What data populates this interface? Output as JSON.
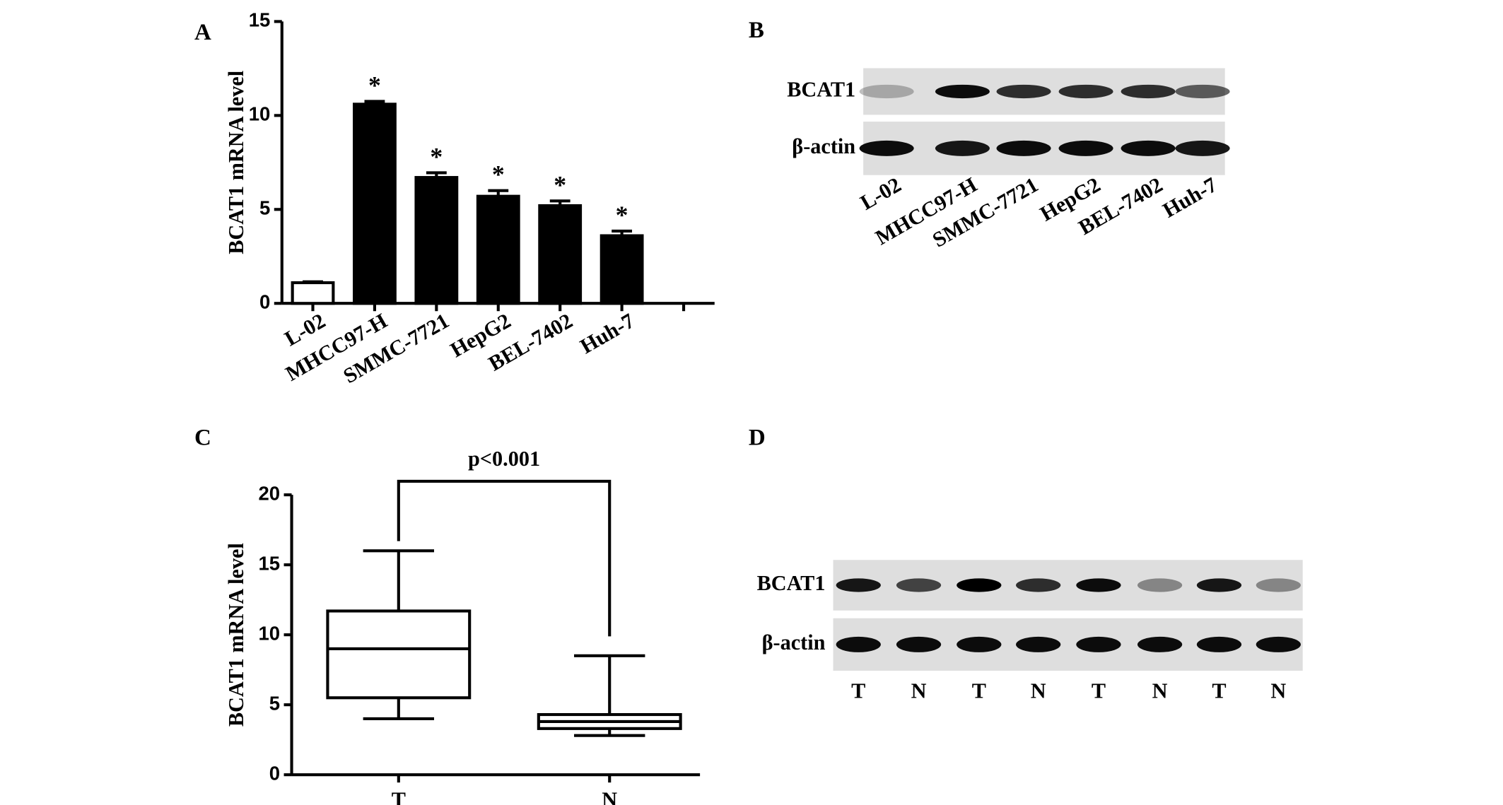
{
  "chart_data": [
    {
      "type": "bar",
      "panel": "A",
      "y_label": "BCAT1 mRNA level",
      "categories": [
        "L-02",
        "MHCC97-H",
        "SMMC-7721",
        "HepG2",
        "BEL-7402",
        "Huh-7",
        null
      ],
      "values": [
        1.1,
        10.6,
        6.7,
        5.7,
        5.2,
        3.6,
        null
      ],
      "errors": [
        0.05,
        0.15,
        0.25,
        0.3,
        0.25,
        0.25,
        null
      ],
      "colors": [
        "#ffffff",
        "#000000",
        "#000000",
        "#000000",
        "#000000",
        "#000000",
        null
      ],
      "significant": [
        false,
        true,
        true,
        true,
        true,
        true,
        null
      ],
      "marker": "*",
      "ylim": [
        0,
        15
      ],
      "yticks": [
        0,
        5,
        10,
        15
      ]
    },
    {
      "type": "box",
      "panel": "C",
      "y_label": "BCAT1 mRNA level",
      "categories": [
        "T",
        "N"
      ],
      "boxes": [
        {
          "min": 4,
          "q1": 5.5,
          "median": 9,
          "q3": 11.7,
          "max": 16
        },
        {
          "min": 2.8,
          "q1": 3.3,
          "median": 3.8,
          "q3": 4.3,
          "max": 8.5
        }
      ],
      "annotation": "p<0.001",
      "ylim": [
        0,
        20
      ],
      "yticks": [
        0,
        5,
        10,
        15,
        20
      ]
    }
  ],
  "blots": [
    {
      "panel": "B",
      "rows": [
        "BCAT1",
        "β-actin"
      ],
      "lanes": [
        "L-02",
        "MHCC97-H",
        "SMMC-7721",
        "HepG2",
        "BEL-7402",
        "Huh-7"
      ]
    },
    {
      "panel": "D",
      "rows": [
        "BCAT1",
        "β-actin"
      ],
      "lanes": [
        "T",
        "N",
        "T",
        "N",
        "T",
        "N",
        "T",
        "N"
      ]
    }
  ]
}
